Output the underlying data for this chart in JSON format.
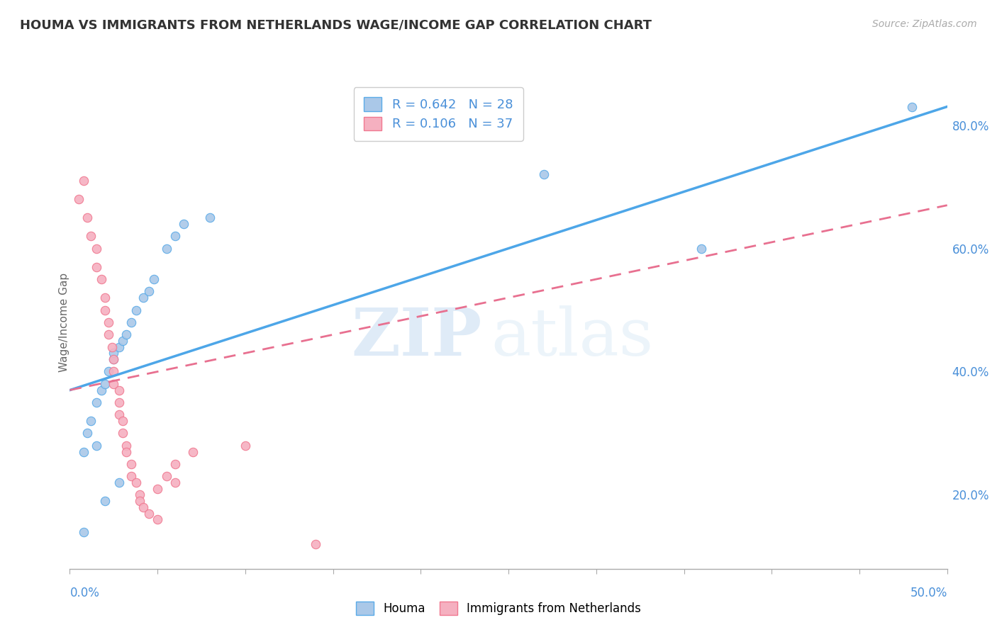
{
  "title": "HOUMA VS IMMIGRANTS FROM NETHERLANDS WAGE/INCOME GAP CORRELATION CHART",
  "source": "Source: ZipAtlas.com",
  "ylabel": "Wage/Income Gap",
  "xmin": 0.0,
  "xmax": 0.5,
  "ymin": 0.08,
  "ymax": 0.88,
  "right_yticks": [
    0.2,
    0.4,
    0.6,
    0.8
  ],
  "right_yticklabels": [
    "20.0%",
    "40.0%",
    "60.0%",
    "80.0%"
  ],
  "houma_color": "#aac8e8",
  "netherlands_color": "#f5b0c0",
  "houma_edge_color": "#5aabe8",
  "netherlands_edge_color": "#f07890",
  "houma_line_color": "#4da6e8",
  "netherlands_line_color": "#e87090",
  "houma_R": 0.642,
  "houma_N": 28,
  "netherlands_R": 0.106,
  "netherlands_N": 37,
  "houma_scatter": [
    [
      0.008,
      0.14
    ],
    [
      0.02,
      0.19
    ],
    [
      0.028,
      0.22
    ],
    [
      0.008,
      0.27
    ],
    [
      0.015,
      0.28
    ],
    [
      0.01,
      0.3
    ],
    [
      0.012,
      0.32
    ],
    [
      0.015,
      0.35
    ],
    [
      0.018,
      0.37
    ],
    [
      0.02,
      0.38
    ],
    [
      0.022,
      0.4
    ],
    [
      0.025,
      0.42
    ],
    [
      0.025,
      0.43
    ],
    [
      0.028,
      0.44
    ],
    [
      0.03,
      0.45
    ],
    [
      0.032,
      0.46
    ],
    [
      0.035,
      0.48
    ],
    [
      0.038,
      0.5
    ],
    [
      0.042,
      0.52
    ],
    [
      0.045,
      0.53
    ],
    [
      0.048,
      0.55
    ],
    [
      0.055,
      0.6
    ],
    [
      0.06,
      0.62
    ],
    [
      0.065,
      0.64
    ],
    [
      0.08,
      0.65
    ],
    [
      0.27,
      0.72
    ],
    [
      0.36,
      0.6
    ],
    [
      0.48,
      0.83
    ]
  ],
  "netherlands_scatter": [
    [
      0.005,
      0.68
    ],
    [
      0.008,
      0.71
    ],
    [
      0.01,
      0.65
    ],
    [
      0.012,
      0.62
    ],
    [
      0.015,
      0.6
    ],
    [
      0.015,
      0.57
    ],
    [
      0.018,
      0.55
    ],
    [
      0.02,
      0.52
    ],
    [
      0.02,
      0.5
    ],
    [
      0.022,
      0.48
    ],
    [
      0.022,
      0.46
    ],
    [
      0.024,
      0.44
    ],
    [
      0.025,
      0.42
    ],
    [
      0.025,
      0.4
    ],
    [
      0.025,
      0.38
    ],
    [
      0.028,
      0.37
    ],
    [
      0.028,
      0.35
    ],
    [
      0.028,
      0.33
    ],
    [
      0.03,
      0.32
    ],
    [
      0.03,
      0.3
    ],
    [
      0.032,
      0.28
    ],
    [
      0.032,
      0.27
    ],
    [
      0.035,
      0.25
    ],
    [
      0.035,
      0.23
    ],
    [
      0.038,
      0.22
    ],
    [
      0.04,
      0.2
    ],
    [
      0.04,
      0.19
    ],
    [
      0.042,
      0.18
    ],
    [
      0.045,
      0.17
    ],
    [
      0.05,
      0.16
    ],
    [
      0.05,
      0.21
    ],
    [
      0.055,
      0.23
    ],
    [
      0.06,
      0.25
    ],
    [
      0.07,
      0.27
    ],
    [
      0.1,
      0.28
    ],
    [
      0.14,
      0.12
    ],
    [
      0.06,
      0.22
    ]
  ],
  "houma_trend": [
    0.0,
    0.5,
    0.37,
    0.83
  ],
  "netherlands_trend": [
    0.0,
    0.5,
    0.37,
    0.67
  ],
  "watermark_zip": "ZIP",
  "watermark_atlas": "atlas",
  "background_color": "#ffffff",
  "grid_color": "#cccccc",
  "title_color": "#333333",
  "axis_color": "#4a90d9",
  "legend_label_blue": "Houma",
  "legend_label_pink": "Immigrants from Netherlands"
}
